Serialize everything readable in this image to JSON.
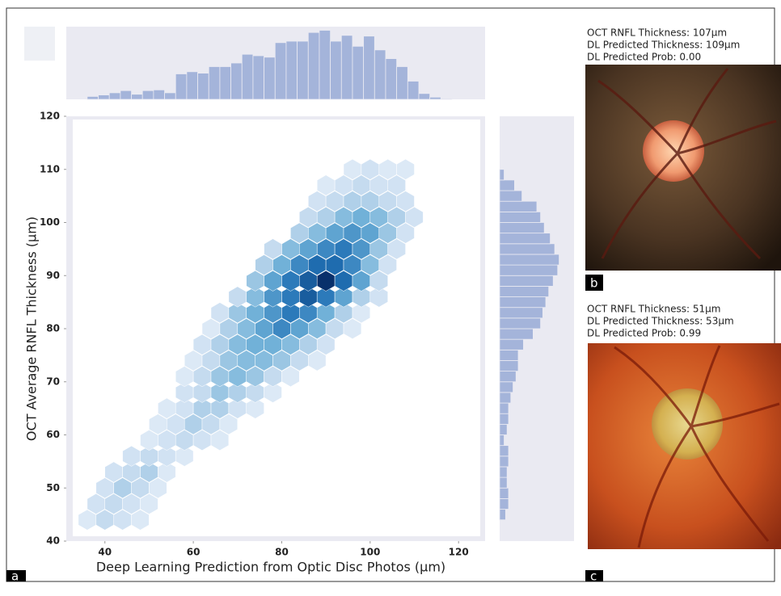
{
  "chart_data": [
    {
      "type": "hexbin",
      "xlabel": "Deep Learning Prediction from Optic Disc Photos (µm)",
      "ylabel": "OCT Average RNFL Thickness  (µm)",
      "colormap": "Blues",
      "xlim": [
        32,
        126
      ],
      "ylim": [
        40,
        120
      ],
      "xticks": [
        40,
        60,
        80,
        100,
        120
      ],
      "yticks": [
        40,
        50,
        60,
        70,
        80,
        90,
        100,
        110,
        120
      ],
      "x": [
        36,
        40,
        44,
        48,
        38,
        42,
        46,
        50,
        40,
        44,
        48,
        52,
        42,
        46,
        50,
        54,
        46,
        50,
        54,
        58,
        50,
        54,
        58,
        62,
        66,
        52,
        56,
        60,
        64,
        68,
        54,
        58,
        62,
        66,
        70,
        74,
        58,
        62,
        66,
        70,
        74,
        78,
        58,
        62,
        66,
        70,
        74,
        78,
        82,
        60,
        64,
        68,
        72,
        76,
        80,
        84,
        88,
        62,
        66,
        70,
        74,
        78,
        82,
        86,
        90,
        64,
        68,
        72,
        76,
        80,
        84,
        88,
        92,
        96,
        66,
        70,
        74,
        78,
        82,
        86,
        90,
        94,
        98,
        70,
        74,
        78,
        82,
        86,
        90,
        94,
        98,
        102,
        74,
        78,
        82,
        86,
        90,
        94,
        98,
        102,
        76,
        80,
        84,
        88,
        92,
        96,
        100,
        104,
        78,
        82,
        86,
        90,
        94,
        98,
        102,
        106,
        84,
        88,
        92,
        96,
        100,
        104,
        108,
        86,
        90,
        94,
        98,
        102,
        106,
        110,
        88,
        92,
        96,
        100,
        104,
        108,
        90,
        94,
        98,
        102,
        106,
        96,
        100,
        104,
        108
      ],
      "y": [
        44,
        44,
        44,
        44,
        47,
        47,
        47,
        47,
        50,
        50,
        50,
        50,
        53,
        53,
        53,
        53,
        56,
        56,
        56,
        56,
        59,
        59,
        59,
        59,
        59,
        62,
        62,
        62,
        62,
        62,
        65,
        65,
        65,
        65,
        65,
        65,
        68,
        68,
        68,
        68,
        68,
        68,
        71,
        71,
        71,
        71,
        71,
        71,
        71,
        74,
        74,
        74,
        74,
        74,
        74,
        74,
        74,
        77,
        77,
        77,
        77,
        77,
        77,
        77,
        77,
        80,
        80,
        80,
        80,
        80,
        80,
        80,
        80,
        80,
        83,
        83,
        83,
        83,
        83,
        83,
        83,
        83,
        83,
        86,
        86,
        86,
        86,
        86,
        86,
        86,
        86,
        86,
        89,
        89,
        89,
        89,
        89,
        89,
        89,
        89,
        92,
        92,
        92,
        92,
        92,
        92,
        92,
        92,
        95,
        95,
        95,
        95,
        95,
        95,
        95,
        95,
        98,
        98,
        98,
        98,
        98,
        98,
        98,
        101,
        101,
        101,
        101,
        101,
        101,
        101,
        104,
        104,
        104,
        104,
        104,
        104,
        107,
        107,
        107,
        107,
        107,
        110,
        110,
        110,
        110
      ],
      "values": [
        1,
        3,
        2,
        1,
        2,
        3,
        2,
        1,
        2,
        4,
        3,
        1,
        2,
        3,
        4,
        1,
        2,
        3,
        2,
        1,
        1,
        2,
        3,
        2,
        1,
        1,
        2,
        4,
        3,
        1,
        1,
        2,
        4,
        4,
        2,
        1,
        2,
        3,
        5,
        4,
        3,
        1,
        1,
        3,
        5,
        6,
        5,
        3,
        1,
        1,
        3,
        5,
        6,
        6,
        5,
        3,
        1,
        2,
        4,
        6,
        7,
        7,
        6,
        4,
        2,
        1,
        4,
        6,
        8,
        10,
        8,
        6,
        3,
        1,
        2,
        5,
        7,
        9,
        11,
        10,
        7,
        4,
        1,
        3,
        6,
        9,
        11,
        13,
        11,
        8,
        4,
        2,
        5,
        8,
        11,
        13,
        16,
        12,
        8,
        3,
        4,
        7,
        10,
        12,
        12,
        10,
        6,
        2,
        3,
        6,
        8,
        10,
        11,
        9,
        5,
        2,
        4,
        6,
        8,
        9,
        8,
        5,
        2,
        3,
        4,
        6,
        7,
        6,
        4,
        2,
        2,
        3,
        4,
        4,
        3,
        2,
        1,
        2,
        3,
        2,
        2,
        1,
        2,
        1,
        1
      ]
    },
    {
      "type": "histogram",
      "orientation": "vertical",
      "color": "#a4b4da",
      "xlim": [
        32,
        126
      ],
      "ylim": [
        0,
        100
      ],
      "bins": [
        36,
        38.5,
        41,
        43.5,
        46,
        48.5,
        51,
        53.5,
        56,
        58.5,
        61,
        63.5,
        66,
        68.5,
        71,
        73.5,
        76,
        78.5,
        81,
        83.5,
        86,
        88.5,
        91,
        93.5,
        96,
        98.5,
        101,
        103.5,
        106,
        108.5,
        111,
        113.5,
        116,
        118.5
      ],
      "values": [
        4,
        6,
        9,
        12,
        7,
        12,
        13,
        9,
        35,
        38,
        36,
        45,
        45,
        50,
        62,
        60,
        58,
        78,
        80,
        80,
        92,
        95,
        80,
        88,
        73,
        87,
        68,
        56,
        45,
        25,
        8,
        3,
        1
      ]
    },
    {
      "type": "histogram",
      "orientation": "horizontal",
      "color": "#a4b4da",
      "xlim": [
        0,
        100
      ],
      "ylim": [
        40,
        120
      ],
      "bins": [
        44,
        46,
        48,
        50,
        52,
        54,
        56,
        58,
        60,
        62,
        64,
        66,
        68,
        70,
        72,
        74,
        76,
        78,
        80,
        82,
        84,
        86,
        88,
        90,
        92,
        94,
        96,
        98,
        100,
        102,
        104,
        106,
        108,
        110
      ],
      "values": [
        8,
        12,
        12,
        10,
        10,
        12,
        12,
        6,
        10,
        12,
        12,
        15,
        18,
        22,
        25,
        25,
        32,
        45,
        55,
        58,
        62,
        66,
        72,
        78,
        80,
        74,
        68,
        60,
        55,
        50,
        30,
        20,
        6
      ]
    }
  ],
  "panel_a": {
    "label": "a"
  },
  "panel_b": {
    "label": "b",
    "lines": [
      "OCT RNFL Thickness: 107µm",
      "DL Predicted Thickness: 109µm",
      "DL Predicted Prob: 0.00"
    ]
  },
  "panel_c": {
    "label": "c",
    "lines": [
      "OCT RNFL Thickness: 51µm",
      "DL Predicted Thickness: 53µm",
      "DL Predicted Prob: 0.99"
    ]
  }
}
